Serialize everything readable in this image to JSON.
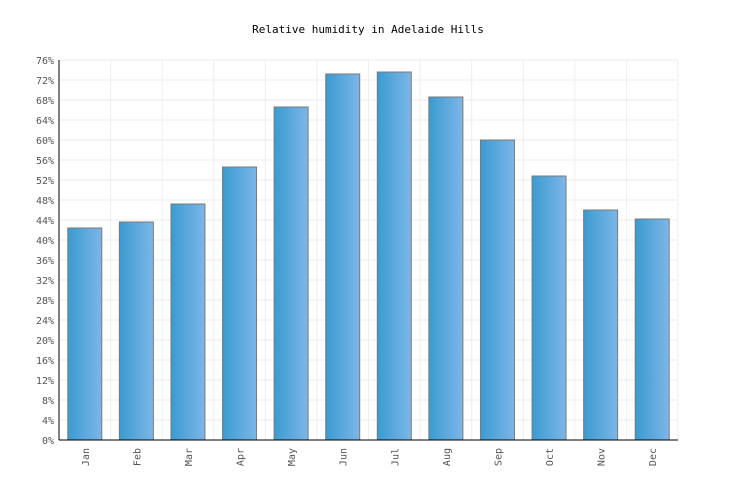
{
  "chart_data": {
    "type": "bar",
    "title": "Relative humidity in Adelaide Hills",
    "xlabel": "",
    "ylabel": "",
    "categories": [
      "Jan",
      "Feb",
      "Mar",
      "Apr",
      "May",
      "Jun",
      "Jul",
      "Aug",
      "Sep",
      "Oct",
      "Nov",
      "Dec"
    ],
    "values": [
      42.4,
      43.6,
      47.2,
      54.6,
      66.6,
      73.2,
      73.6,
      68.6,
      60.0,
      52.8,
      46.0,
      44.2
    ],
    "unit": "%",
    "ylim": [
      0,
      76
    ],
    "yticks": [
      "0%",
      "4%",
      "8%",
      "12%",
      "16%",
      "20%",
      "24%",
      "28%",
      "32%",
      "36%",
      "40%",
      "44%",
      "48%",
      "52%",
      "56%",
      "60%",
      "64%",
      "68%",
      "72%",
      "76%"
    ],
    "grid": true,
    "legend": null,
    "colors": {
      "bar_start": "#3a9bd0",
      "bar_end": "#7db6e8",
      "bar_border": "#7a7a7a",
      "grid": "#eeeeee",
      "axis": "#000000"
    }
  }
}
